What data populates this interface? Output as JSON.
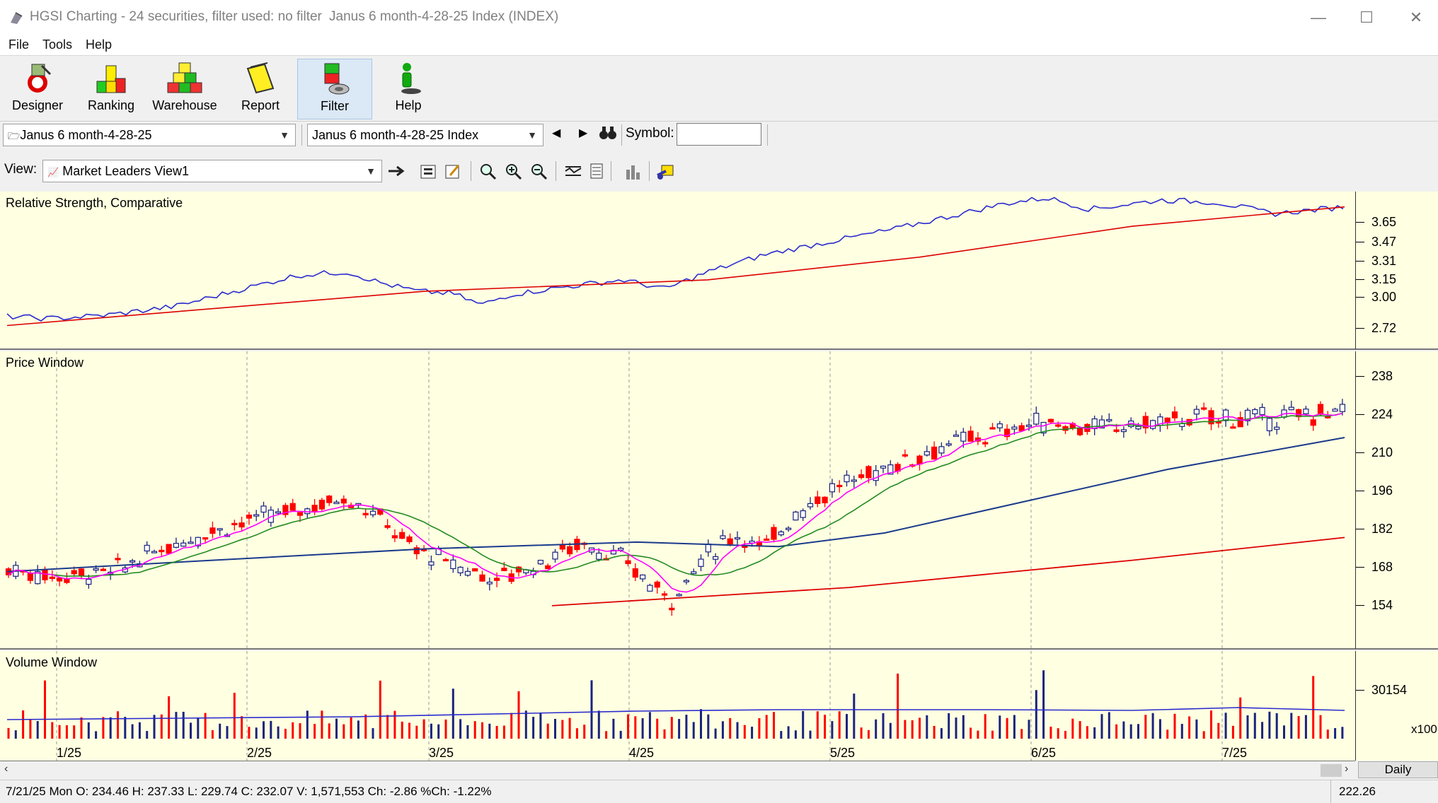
{
  "window": {
    "title": "HGSI Charting - 24 securities, filter used: no filter",
    "document": "Janus 6 month-4-28-25 Index (INDEX)",
    "minimize": "—",
    "maximize": "☐",
    "close": "✕"
  },
  "menu": [
    "File",
    "Tools",
    "Help"
  ],
  "toolbar": [
    {
      "label": "Designer",
      "icon": "designer-icon"
    },
    {
      "label": "Ranking",
      "icon": "ranking-icon"
    },
    {
      "label": "Warehouse",
      "icon": "warehouse-icon"
    },
    {
      "label": "Report",
      "icon": "report-icon"
    },
    {
      "label": "Filter",
      "icon": "filter-icon",
      "active": true
    },
    {
      "label": "Help",
      "icon": "help-icon"
    }
  ],
  "selectors": {
    "list": "Janus 6 month-4-28-25",
    "security": "Janus 6 month-4-28-25 Index",
    "symbol_label": "Symbol:",
    "symbol_value": "",
    "view_label": "View:",
    "view_value": "Market Leaders View1"
  },
  "panes": {
    "rs_title": "Relative Strength, Comparative",
    "rs_ticks": [
      "3.65",
      "3.47",
      "3.31",
      "3.15",
      "3.00",
      "2.72"
    ],
    "price_title": "Price Window",
    "price_ticks": [
      "238",
      "224",
      "210",
      "196",
      "182",
      "168",
      "154"
    ],
    "volume_title": "Volume Window",
    "volume_ticks": [
      "30154"
    ],
    "volume_multiplier": "x100"
  },
  "x_axis": [
    "1/25",
    "2/25",
    "3/25",
    "4/25",
    "5/25",
    "6/25",
    "7/25"
  ],
  "period_button": "Daily",
  "status": {
    "quote": "7/21/25 Mon O: 234.46 H: 237.33 L: 229.74 C: 232.07 V: 1,571,553 Ch: -2.86 %Ch: -1.22%",
    "right_value": "222.26"
  },
  "colors": {
    "chart_bg": "#ffffe1",
    "up": "#1a237e",
    "down": "#ff0000",
    "rs_line": "#2a2ad0",
    "ma_fast": "#ff00ff",
    "ma_mid": "#228b22",
    "ma_slow": "#1a3a8c",
    "ma_long": "#dd0000"
  }
}
